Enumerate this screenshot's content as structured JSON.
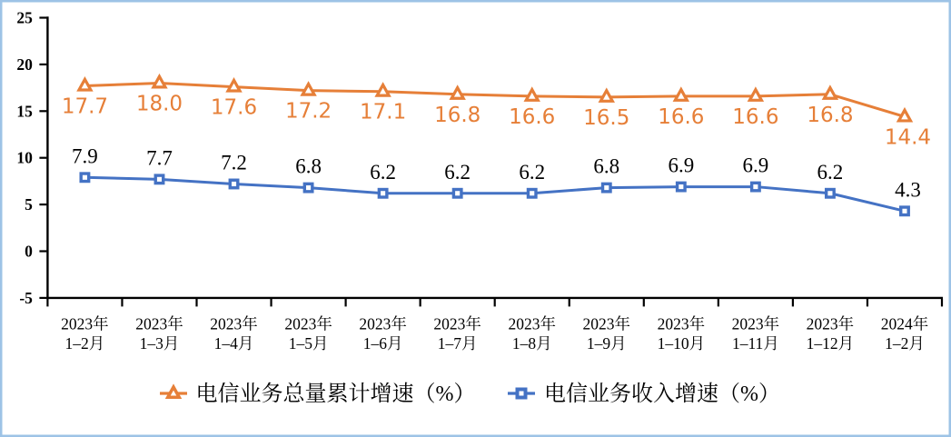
{
  "chart_data": {
    "type": "line",
    "title": "",
    "categories": [
      {
        "line1": "2023年",
        "line2": "1–2月"
      },
      {
        "line1": "2023年",
        "line2": "1–3月"
      },
      {
        "line1": "2023年",
        "line2": "1–4月"
      },
      {
        "line1": "2023年",
        "line2": "1–5月"
      },
      {
        "line1": "2023年",
        "line2": "1–6月"
      },
      {
        "line1": "2023年",
        "line2": "1–7月"
      },
      {
        "line1": "2023年",
        "line2": "1–8月"
      },
      {
        "line1": "2023年",
        "line2": "1–9月"
      },
      {
        "line1": "2023年",
        "line2": "1–10月"
      },
      {
        "line1": "2023年",
        "line2": "1–11月"
      },
      {
        "line1": "2023年",
        "line2": "1–12月"
      },
      {
        "line1": "2024年",
        "line2": "1–2月"
      }
    ],
    "series": [
      {
        "name": "电信业务总量累计增速（%）",
        "values": [
          17.7,
          18.0,
          17.6,
          17.2,
          17.1,
          16.8,
          16.6,
          16.5,
          16.6,
          16.6,
          16.8,
          14.4
        ],
        "labels": [
          "17.7",
          "18.0",
          "17.6",
          "17.2",
          "17.1",
          "16.8",
          "16.6",
          "16.5",
          "16.6",
          "16.6",
          "16.8",
          "14.4"
        ],
        "color": "#E67F38",
        "marker": "triangle",
        "label_position": "below",
        "label_color": "#E67F38",
        "label_font": "sans"
      },
      {
        "name": "电信业务收入增速（%）",
        "values": [
          7.9,
          7.7,
          7.2,
          6.8,
          6.2,
          6.2,
          6.2,
          6.8,
          6.9,
          6.9,
          6.2,
          4.3
        ],
        "labels": [
          "7.9",
          "7.7",
          "7.2",
          "6.8",
          "6.2",
          "6.2",
          "6.2",
          "6.8",
          "6.9",
          "6.9",
          "6.2",
          "4.3"
        ],
        "color": "#4472C4",
        "marker": "square",
        "label_position": "above",
        "label_color": "#000000",
        "label_font": "serif"
      }
    ],
    "y_ticks": [
      25,
      20,
      15,
      10,
      5,
      0,
      -5
    ],
    "y_tick_labels": [
      "25",
      "20",
      "15",
      "10",
      "5",
      "0",
      "-5"
    ],
    "ylim": [
      -5,
      25
    ],
    "xlabel": "",
    "ylabel": "",
    "grid": "off",
    "legend_position": "bottom",
    "axis_color": "#000000",
    "border_color": "#9DC3E6",
    "background": "#FFFFFF"
  }
}
